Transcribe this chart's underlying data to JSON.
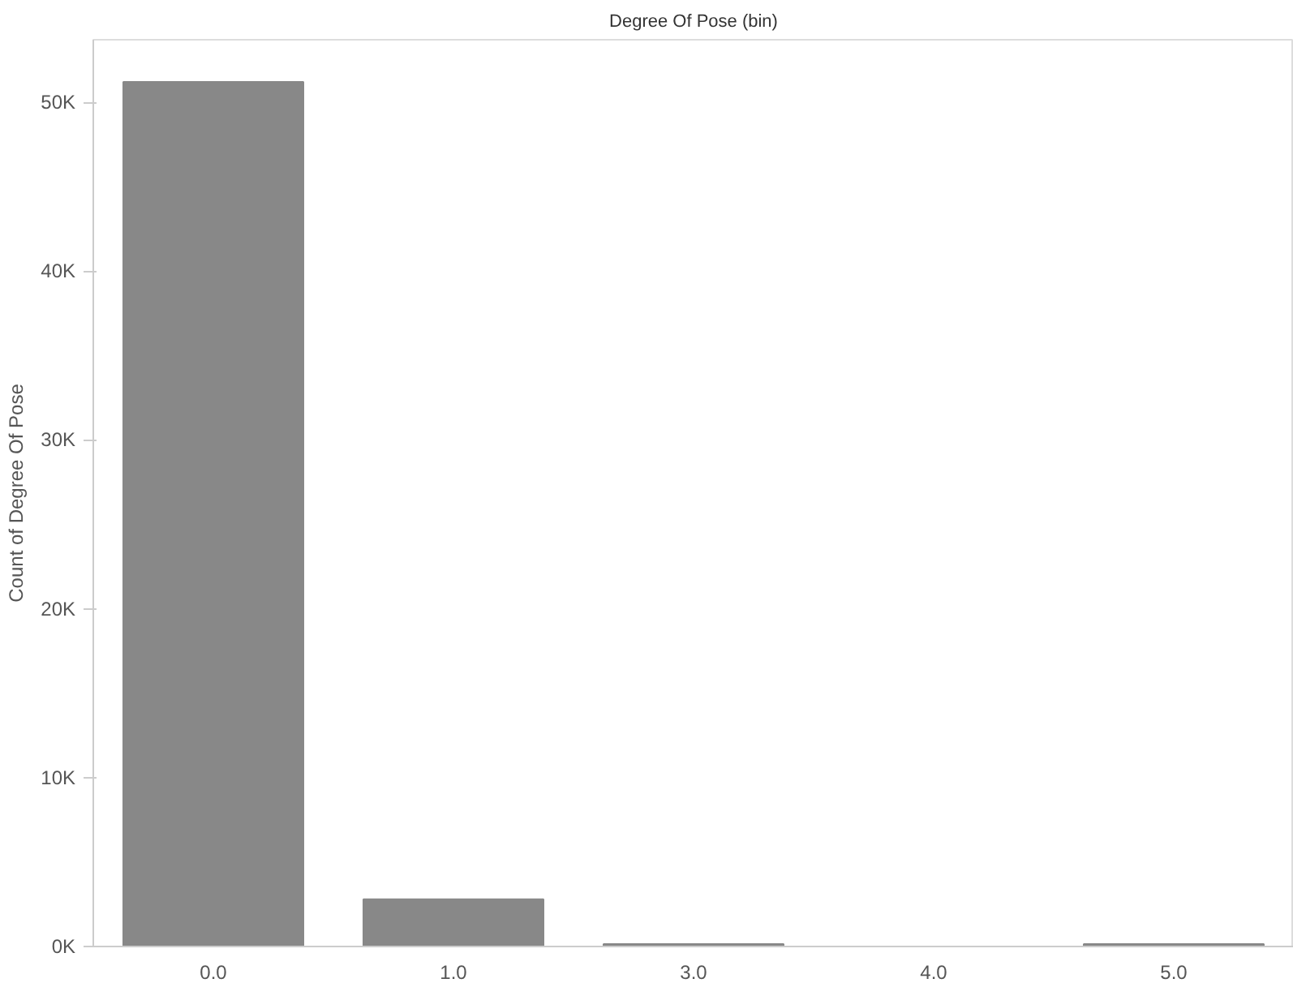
{
  "chart_data": {
    "type": "bar",
    "title": "Degree Of Pose (bin)",
    "ylabel": "Count of Degree Of Pose",
    "categories": [
      "0.0",
      "1.0",
      "3.0",
      "4.0",
      "5.0"
    ],
    "values": [
      51200,
      2800,
      150,
      0,
      150
    ],
    "color": "#888888",
    "ylim": [
      0,
      53700
    ],
    "yticks": [
      {
        "value": 0,
        "label": "0K"
      },
      {
        "value": 10000,
        "label": "10K"
      },
      {
        "value": 20000,
        "label": "20K"
      },
      {
        "value": 30000,
        "label": "30K"
      },
      {
        "value": 40000,
        "label": "40K"
      },
      {
        "value": 50000,
        "label": "50K"
      }
    ],
    "grid": false
  }
}
